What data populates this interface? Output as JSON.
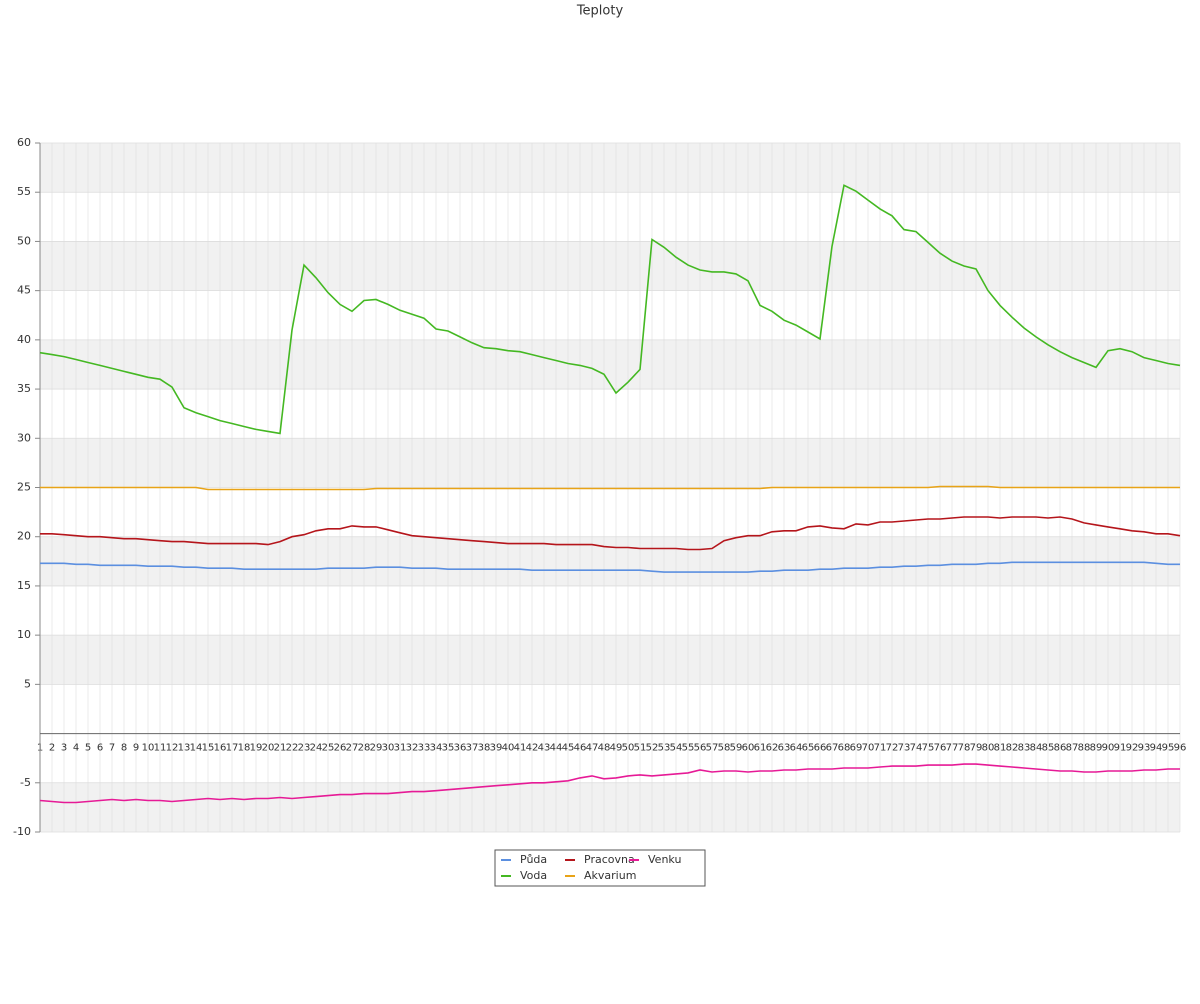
{
  "chart_data": {
    "type": "line",
    "title": "Teploty",
    "categories": [
      1,
      2,
      3,
      4,
      5,
      6,
      7,
      8,
      9,
      10,
      11,
      12,
      13,
      14,
      15,
      16,
      17,
      18,
      19,
      20,
      21,
      22,
      23,
      24,
      25,
      26,
      27,
      28,
      29,
      30,
      31,
      32,
      33,
      34,
      35,
      36,
      37,
      38,
      39,
      40,
      41,
      42,
      43,
      44,
      45,
      46,
      47,
      48,
      49,
      50,
      51,
      52,
      53,
      54,
      55,
      56,
      57,
      58,
      59,
      60,
      61,
      62,
      63,
      64,
      65,
      66,
      67,
      68,
      69,
      70,
      71,
      72,
      73,
      74,
      75,
      76,
      77,
      78,
      79,
      80,
      81,
      82,
      83,
      84,
      85,
      86,
      87,
      88,
      89,
      90,
      91,
      92,
      93,
      94,
      95,
      96
    ],
    "series": [
      {
        "name": "Půda",
        "color": "#5b8fe0",
        "values": [
          17.3,
          17.3,
          17.3,
          17.2,
          17.2,
          17.1,
          17.1,
          17.1,
          17.1,
          17.0,
          17.0,
          17.0,
          16.9,
          16.9,
          16.8,
          16.8,
          16.8,
          16.7,
          16.7,
          16.7,
          16.7,
          16.7,
          16.7,
          16.7,
          16.8,
          16.8,
          16.8,
          16.8,
          16.9,
          16.9,
          16.9,
          16.8,
          16.8,
          16.8,
          16.7,
          16.7,
          16.7,
          16.7,
          16.7,
          16.7,
          16.7,
          16.6,
          16.6,
          16.6,
          16.6,
          16.6,
          16.6,
          16.6,
          16.6,
          16.6,
          16.6,
          16.5,
          16.4,
          16.4,
          16.4,
          16.4,
          16.4,
          16.4,
          16.4,
          16.4,
          16.5,
          16.5,
          16.6,
          16.6,
          16.6,
          16.7,
          16.7,
          16.8,
          16.8,
          16.8,
          16.9,
          16.9,
          17.0,
          17.0,
          17.1,
          17.1,
          17.2,
          17.2,
          17.2,
          17.3,
          17.3,
          17.4,
          17.4,
          17.4,
          17.4,
          17.4,
          17.4,
          17.4,
          17.4,
          17.4,
          17.4,
          17.4,
          17.4,
          17.3,
          17.2,
          17.2
        ]
      },
      {
        "name": "Voda",
        "color": "#44b822",
        "values": [
          38.7,
          38.5,
          38.3,
          38.0,
          37.7,
          37.4,
          37.1,
          36.8,
          36.5,
          36.2,
          36.0,
          35.2,
          33.1,
          32.6,
          32.2,
          31.8,
          31.5,
          31.2,
          30.9,
          30.7,
          30.5,
          41.0,
          47.6,
          46.3,
          44.8,
          43.6,
          42.9,
          44.0,
          44.1,
          43.6,
          43.0,
          42.6,
          42.2,
          41.1,
          40.9,
          40.3,
          39.7,
          39.2,
          39.1,
          38.9,
          38.8,
          38.5,
          38.2,
          37.9,
          37.6,
          37.4,
          37.1,
          36.5,
          34.6,
          35.7,
          37.0,
          50.2,
          49.4,
          48.4,
          47.6,
          47.1,
          46.9,
          46.9,
          46.7,
          46.0,
          43.5,
          42.9,
          42.0,
          41.5,
          40.8,
          40.1,
          49.5,
          55.7,
          55.1,
          54.2,
          53.3,
          52.6,
          51.2,
          51.0,
          49.9,
          48.8,
          48.0,
          47.5,
          47.2,
          45.0,
          43.5,
          42.3,
          41.2,
          40.3,
          39.5,
          38.8,
          38.2,
          37.7,
          37.2,
          38.9,
          39.1,
          38.8,
          38.2,
          37.9,
          37.6,
          37.4
        ]
      },
      {
        "name": "Pracovna",
        "color": "#b5151b",
        "values": [
          20.3,
          20.3,
          20.2,
          20.1,
          20.0,
          20.0,
          19.9,
          19.8,
          19.8,
          19.7,
          19.6,
          19.5,
          19.5,
          19.4,
          19.3,
          19.3,
          19.3,
          19.3,
          19.3,
          19.2,
          19.5,
          20.0,
          20.2,
          20.6,
          20.8,
          20.8,
          21.1,
          21.0,
          21.0,
          20.7,
          20.4,
          20.1,
          20.0,
          19.9,
          19.8,
          19.7,
          19.6,
          19.5,
          19.4,
          19.3,
          19.3,
          19.3,
          19.3,
          19.2,
          19.2,
          19.2,
          19.2,
          19.0,
          18.9,
          18.9,
          18.8,
          18.8,
          18.8,
          18.8,
          18.7,
          18.7,
          18.8,
          19.6,
          19.9,
          20.1,
          20.1,
          20.5,
          20.6,
          20.6,
          21.0,
          21.1,
          20.9,
          20.8,
          21.3,
          21.2,
          21.5,
          21.5,
          21.6,
          21.7,
          21.8,
          21.8,
          21.9,
          22.0,
          22.0,
          22.0,
          21.9,
          22.0,
          22.0,
          22.0,
          21.9,
          22.0,
          21.8,
          21.4,
          21.2,
          21.0,
          20.8,
          20.6,
          20.5,
          20.3,
          20.3,
          20.1
        ]
      },
      {
        "name": "Akvarium",
        "color": "#e8a317",
        "values": [
          25.0,
          25.0,
          25.0,
          25.0,
          25.0,
          25.0,
          25.0,
          25.0,
          25.0,
          25.0,
          25.0,
          25.0,
          25.0,
          25.0,
          24.8,
          24.8,
          24.8,
          24.8,
          24.8,
          24.8,
          24.8,
          24.8,
          24.8,
          24.8,
          24.8,
          24.8,
          24.8,
          24.8,
          24.9,
          24.9,
          24.9,
          24.9,
          24.9,
          24.9,
          24.9,
          24.9,
          24.9,
          24.9,
          24.9,
          24.9,
          24.9,
          24.9,
          24.9,
          24.9,
          24.9,
          24.9,
          24.9,
          24.9,
          24.9,
          24.9,
          24.9,
          24.9,
          24.9,
          24.9,
          24.9,
          24.9,
          24.9,
          24.9,
          24.9,
          24.9,
          24.9,
          25.0,
          25.0,
          25.0,
          25.0,
          25.0,
          25.0,
          25.0,
          25.0,
          25.0,
          25.0,
          25.0,
          25.0,
          25.0,
          25.0,
          25.1,
          25.1,
          25.1,
          25.1,
          25.1,
          25.0,
          25.0,
          25.0,
          25.0,
          25.0,
          25.0,
          25.0,
          25.0,
          25.0,
          25.0,
          25.0,
          25.0,
          25.0,
          25.0,
          25.0,
          25.0
        ]
      },
      {
        "name": "Venku",
        "color": "#e61a96",
        "values": [
          -6.8,
          -6.9,
          -7.0,
          -7.0,
          -6.9,
          -6.8,
          -6.7,
          -6.8,
          -6.7,
          -6.8,
          -6.8,
          -6.9,
          -6.8,
          -6.7,
          -6.6,
          -6.7,
          -6.6,
          -6.7,
          -6.6,
          -6.6,
          -6.5,
          -6.6,
          -6.5,
          -6.4,
          -6.3,
          -6.2,
          -6.2,
          -6.1,
          -6.1,
          -6.1,
          -6.0,
          -5.9,
          -5.9,
          -5.8,
          -5.7,
          -5.6,
          -5.5,
          -5.4,
          -5.3,
          -5.2,
          -5.1,
          -5.0,
          -5.0,
          -4.9,
          -4.8,
          -4.5,
          -4.3,
          -4.6,
          -4.5,
          -4.3,
          -4.2,
          -4.3,
          -4.2,
          -4.1,
          -4.0,
          -3.7,
          -3.9,
          -3.8,
          -3.8,
          -3.9,
          -3.8,
          -3.8,
          -3.7,
          -3.7,
          -3.6,
          -3.6,
          -3.6,
          -3.5,
          -3.5,
          -3.5,
          -3.4,
          -3.3,
          -3.3,
          -3.3,
          -3.2,
          -3.2,
          -3.2,
          -3.1,
          -3.1,
          -3.2,
          -3.3,
          -3.4,
          -3.5,
          -3.6,
          -3.7,
          -3.8,
          -3.8,
          -3.9,
          -3.9,
          -3.8,
          -3.8,
          -3.8,
          -3.7,
          -3.7,
          -3.6,
          -3.6
        ]
      }
    ],
    "ylim": [
      -10,
      60
    ],
    "yticks": [
      -10,
      -5,
      5,
      10,
      15,
      20,
      25,
      30,
      35,
      40,
      45,
      50,
      55,
      60
    ],
    "grid": true,
    "legend": "bottom"
  }
}
